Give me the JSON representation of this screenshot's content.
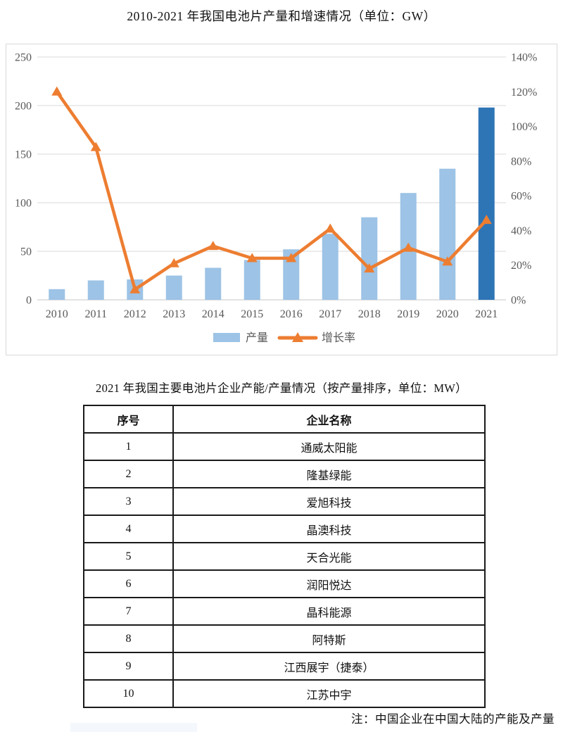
{
  "chart_title": "2010-2021 年我国电池片产量和增速情况（单位：GW）",
  "chart_data": {
    "type": "combo",
    "categories": [
      "2010",
      "2011",
      "2012",
      "2013",
      "2014",
      "2015",
      "2016",
      "2017",
      "2018",
      "2019",
      "2020",
      "2021"
    ],
    "series": [
      {
        "name": "产量",
        "type": "bar",
        "axis": "left",
        "values": [
          11,
          20,
          21,
          25,
          33,
          41,
          52,
          68,
          85,
          110,
          135,
          198
        ],
        "color": "#9dc3e6",
        "last_bar_color": "#2e75b6"
      },
      {
        "name": "增长率",
        "type": "line",
        "axis": "right",
        "unit": "%",
        "values": [
          120,
          88,
          6,
          21,
          31,
          24,
          24,
          41,
          18,
          30,
          22,
          46
        ],
        "color": "#ed7d31",
        "marker": "triangle"
      }
    ],
    "left_axis": {
      "min": 0,
      "max": 250,
      "step": 50,
      "ticks": [
        "0",
        "50",
        "100",
        "150",
        "200",
        "250"
      ]
    },
    "right_axis": {
      "min": 0,
      "max": 140,
      "step": 20,
      "suffix": "%",
      "ticks": [
        "0%",
        "20%",
        "40%",
        "60%",
        "80%",
        "100%",
        "120%",
        "140%"
      ]
    },
    "grid": true,
    "legend_position": "bottom",
    "colors": {
      "grid": "#d9d9d9",
      "axis_text": "#595959",
      "frame": "#d9d9d9"
    }
  },
  "table_title": "2021 年我国主要电池片企业产能/产量情况（按产量排序，单位：MW）",
  "table": {
    "headers": [
      "序号",
      "企业名称"
    ],
    "rows": [
      [
        "1",
        "通威太阳能"
      ],
      [
        "2",
        "隆基绿能"
      ],
      [
        "3",
        "爱旭科技"
      ],
      [
        "4",
        "晶澳科技"
      ],
      [
        "5",
        "天合光能"
      ],
      [
        "6",
        "润阳悦达"
      ],
      [
        "7",
        "晶科能源"
      ],
      [
        "8",
        "阿特斯"
      ],
      [
        "9",
        "江西展宇（捷泰）"
      ],
      [
        "10",
        "江苏中宇"
      ]
    ]
  },
  "note": "注：中国企业在中国大陆的产能及产量"
}
